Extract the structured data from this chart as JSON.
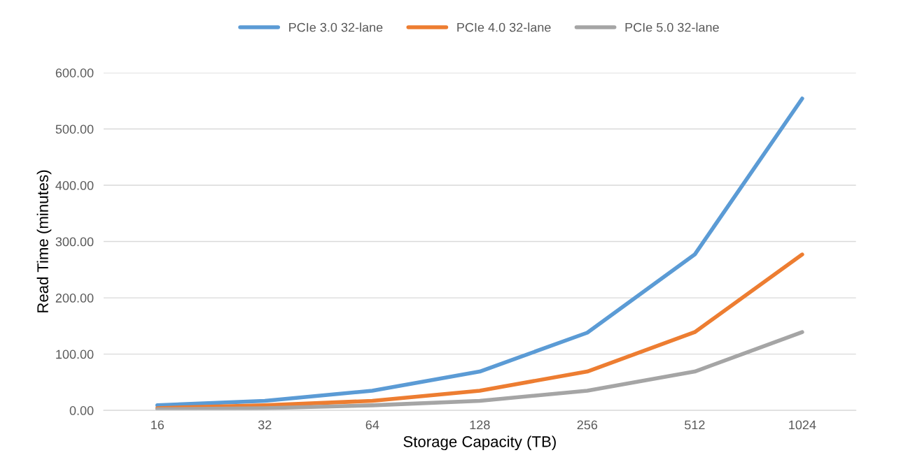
{
  "chart_data": {
    "type": "line",
    "xlabel": "Storage Capacity (TB)",
    "ylabel": "Read Time (minutes)",
    "categories": [
      "16",
      "32",
      "64",
      "128",
      "256",
      "512",
      "1024"
    ],
    "series": [
      {
        "name": "PCIe 3.0 32-lane",
        "color": "#5b9bd5",
        "values": [
          9,
          17,
          35,
          69,
          138,
          277,
          554
        ]
      },
      {
        "name": "PCIe 4.0 32-lane",
        "color": "#ed7d31",
        "values": [
          4,
          9,
          17,
          35,
          69,
          139,
          277
        ]
      },
      {
        "name": "PCIe 5.0 32-lane",
        "color": "#a5a5a5",
        "values": [
          2,
          4,
          9,
          17,
          35,
          69,
          139
        ]
      }
    ],
    "ylim": [
      0,
      600
    ],
    "yticks": [
      {
        "value": 0,
        "label": "0.00"
      },
      {
        "value": 100,
        "label": "100.00"
      },
      {
        "value": 200,
        "label": "200.00"
      },
      {
        "value": 300,
        "label": "300.00"
      },
      {
        "value": 400,
        "label": "400.00"
      },
      {
        "value": 500,
        "label": "500.00"
      },
      {
        "value": 600,
        "label": "600.00"
      }
    ],
    "grid": "y",
    "legend": "top",
    "marker": "none",
    "line_style": "solid"
  }
}
